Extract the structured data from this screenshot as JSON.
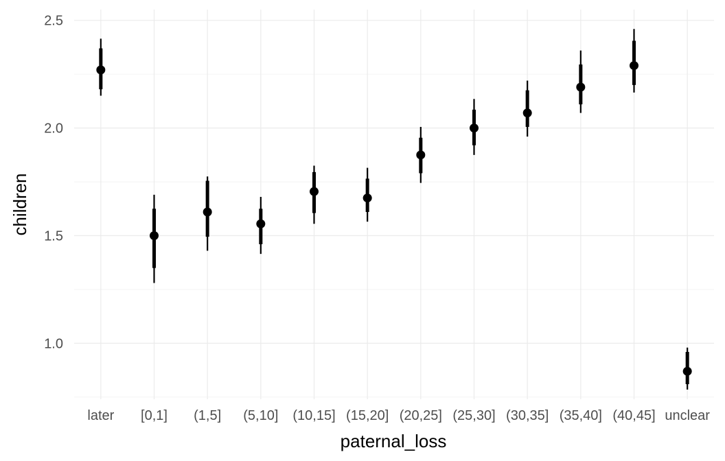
{
  "chart_data": {
    "type": "pointrange",
    "title": "",
    "xlabel": "paternal_loss",
    "ylabel": "children",
    "categories": [
      "later",
      "[0,1]",
      "(1,5]",
      "(5,10]",
      "(10,15]",
      "(15,20]",
      "(20,25]",
      "(25,30]",
      "(30,35]",
      "(35,40]",
      "(40,45]",
      "unclear"
    ],
    "estimate": [
      2.27,
      1.5,
      1.61,
      1.555,
      1.705,
      1.675,
      1.875,
      2.0,
      2.07,
      2.19,
      2.29,
      0.87
    ],
    "inner_lower": [
      2.18,
      1.35,
      1.495,
      1.46,
      1.605,
      1.61,
      1.79,
      1.92,
      2.005,
      2.11,
      2.2,
      0.81
    ],
    "inner_upper": [
      2.37,
      1.625,
      1.755,
      1.625,
      1.795,
      1.765,
      1.955,
      2.085,
      2.175,
      2.295,
      2.405,
      0.96
    ],
    "outer_lower": [
      2.15,
      1.28,
      1.43,
      1.415,
      1.555,
      1.565,
      1.745,
      1.875,
      1.96,
      2.07,
      2.165,
      0.785
    ],
    "outer_upper": [
      2.415,
      1.69,
      1.775,
      1.68,
      1.825,
      1.815,
      2.005,
      2.135,
      2.22,
      2.36,
      2.46,
      0.98
    ],
    "yticks": [
      1.0,
      1.5,
      2.0,
      2.5
    ],
    "ytick_labels": [
      "1.0",
      "1.5",
      "2.0",
      "2.5"
    ],
    "ylim": [
      0.74,
      2.55
    ],
    "grid": true,
    "legend": "none",
    "colors": {
      "marks": "#000000",
      "grid": "#ebebeb",
      "tick_text": "#4d4d4d"
    }
  }
}
